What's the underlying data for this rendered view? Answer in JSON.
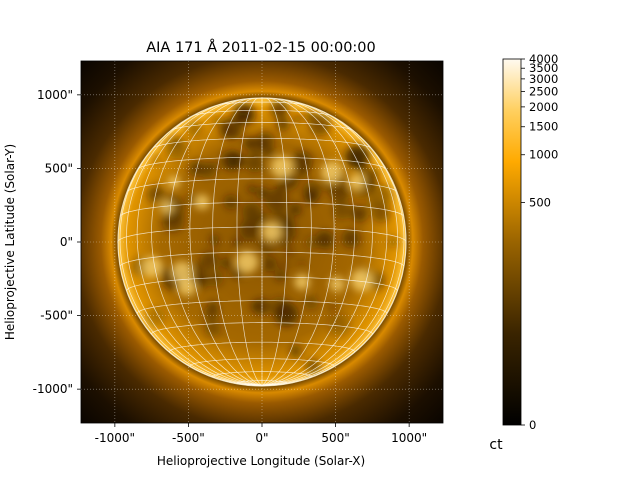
{
  "title": "AIA 171 Å 2011-02-15 00:00:00",
  "xlabel": "Helioprojective Longitude (Solar-X)",
  "ylabel": "Helioprojective Latitude (Solar-Y)",
  "x_ticks": [
    "-1000\"",
    "-500\"",
    "0\"",
    "500\"",
    "1000\""
  ],
  "y_ticks": [
    "1000\"",
    "500\"",
    "0\"",
    "-500\"",
    "-1000\""
  ],
  "x_tick_values": [
    -1000,
    -500,
    0,
    500,
    1000
  ],
  "y_tick_values": [
    1000,
    500,
    0,
    -500,
    -1000
  ],
  "axis_range_arcsec": {
    "x": [
      -1230,
      1230
    ],
    "y": [
      -1230,
      1230
    ]
  },
  "solar_radius_arcsec": 980,
  "coordinate_grid": {
    "lon_lat_spacing_deg": 10,
    "color": "#ffffff"
  },
  "colorbar": {
    "colormap": "sdoaia171",
    "scale": "asinh",
    "unit": "ct",
    "tick_values": [
      0,
      500,
      1000,
      1500,
      2000,
      2500,
      3000,
      3500,
      4000
    ],
    "tick_labels": [
      "0",
      "500",
      "1000",
      "1500",
      "2000",
      "2500",
      "3000",
      "3500",
      "4000"
    ]
  },
  "colors": {
    "dark": "#000000",
    "mid": "#b07000",
    "bright": "#ffb000",
    "peak": "#fff6d8"
  }
}
